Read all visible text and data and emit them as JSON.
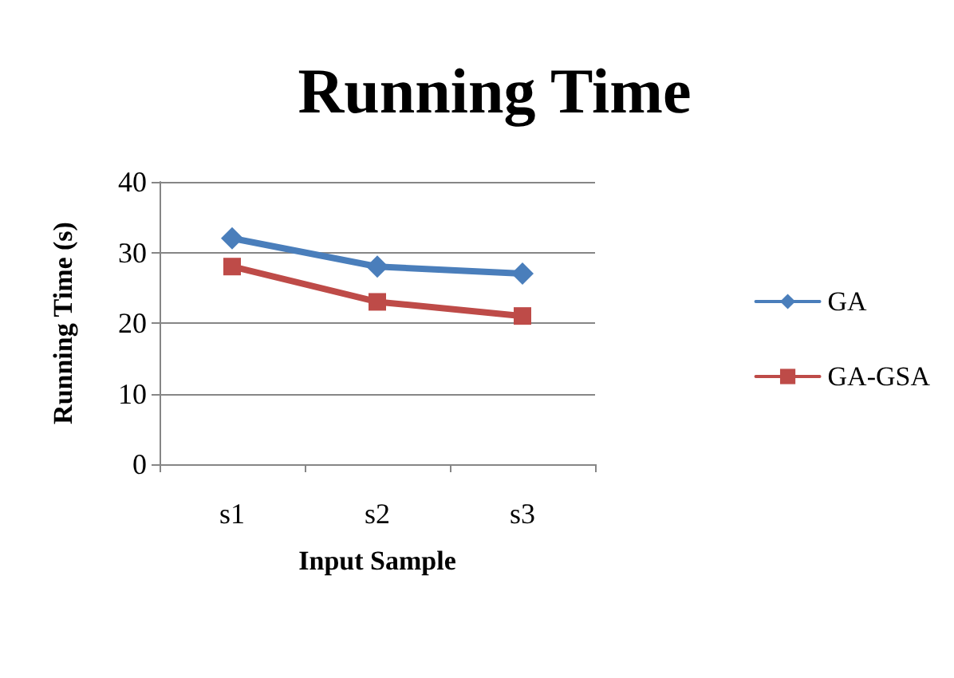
{
  "chart_data": {
    "type": "line",
    "title": "Running Time",
    "xlabel": "Input Sample",
    "ylabel": "Running Time (s)",
    "categories": [
      "s1",
      "s2",
      "s3"
    ],
    "series": [
      {
        "name": "GA",
        "color": "#4a7ebb",
        "values": [
          32,
          28,
          27
        ],
        "marker": "diamond"
      },
      {
        "name": "GA-GSA",
        "color": "#be4b48",
        "values": [
          28,
          23,
          21
        ],
        "marker": "square"
      }
    ],
    "ylim": [
      0,
      40
    ],
    "yticks": [
      0,
      10,
      20,
      30,
      40
    ],
    "grid": "y",
    "legend": "right"
  }
}
